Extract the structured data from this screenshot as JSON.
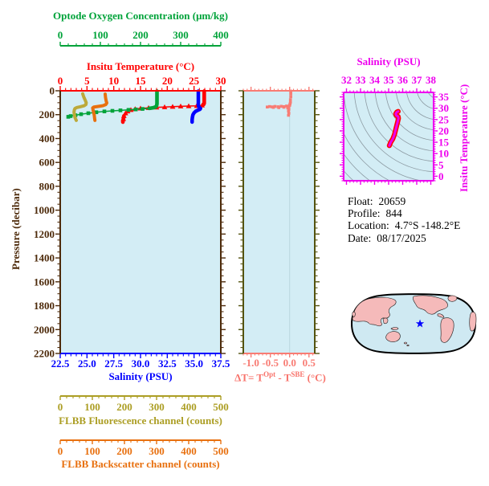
{
  "colors": {
    "panel_bg": "#d3edf5",
    "pressure_axis": "#4d2a0a",
    "temperature": "#ff0000",
    "oxygen": "#00a33a",
    "salinity": "#0000ff",
    "fluorescence": "#ac9e24",
    "backscatter": "#e8700f",
    "delta": "#f87c74",
    "delta_sides": "#54530f",
    "magenta": "#ee00ee",
    "ts_curve_edge": "#ff0000",
    "contour": "#8d9ba3",
    "map_land": "#f5baba",
    "map_ocean": "#cfe9f2",
    "star": "#0000ff",
    "zero_gridline": "#b9d6de"
  },
  "chart_data": [
    {
      "id": "profile",
      "type": "line",
      "y_axis": {
        "label": "Pressure (decibar)",
        "range": [
          0,
          2200
        ],
        "tick_values": [
          0,
          200,
          400,
          600,
          800,
          1000,
          1200,
          1400,
          1600,
          1800,
          2000,
          2200
        ],
        "tick_labels": [
          "0",
          "200",
          "400",
          "600",
          "800",
          "1000",
          "1200",
          "1400",
          "1600",
          "1800",
          "2000",
          "2200"
        ],
        "minor": 50
      },
      "x_axes": {
        "oxygen": {
          "label": "Optode Oxygen Concentration (μm/kg)",
          "range": [
            0,
            400
          ],
          "tick_values": [
            0,
            100,
            200,
            300,
            400
          ],
          "tick_labels": [
            "0",
            "100",
            "200",
            "300",
            "400"
          ],
          "minor": 20
        },
        "temperature": {
          "label": "Insitu Temperature (°C)",
          "range": [
            0,
            30
          ],
          "tick_values": [
            0,
            5,
            10,
            15,
            20,
            25,
            30
          ],
          "tick_labels": [
            "0",
            "5",
            "10",
            "15",
            "20",
            "25",
            "30"
          ],
          "minor": 1
        },
        "salinity": {
          "label": "Salinity (PSU)",
          "range": [
            22.5,
            37.5
          ],
          "tick_values": [
            22.5,
            25.0,
            27.5,
            30.0,
            32.5,
            35.0,
            37.5
          ],
          "tick_labels": [
            "22.5",
            "25.0",
            "27.5",
            "30.0",
            "32.5",
            "35.0",
            "37.5"
          ],
          "minor": 0.5
        },
        "fluorescence": {
          "label": "FLBB Fluorescence channel (counts)",
          "range": [
            0,
            500
          ],
          "tick_values": [
            0,
            100,
            200,
            300,
            400,
            500
          ],
          "tick_labels": [
            "0",
            "100",
            "200",
            "300",
            "400",
            "500"
          ],
          "minor": 20
        },
        "backscatter": {
          "label": "FLBB Backscatter channel (counts)",
          "range": [
            0,
            500
          ],
          "tick_values": [
            0,
            100,
            200,
            300,
            400,
            500
          ],
          "tick_labels": [
            "0",
            "100",
            "200",
            "300",
            "400",
            "500"
          ],
          "minor": 20
        }
      },
      "series": [
        {
          "name": "temperature",
          "axis": "temperature",
          "color": "#ff0000",
          "marker": "triangle",
          "marker_range": [
            122,
            240
          ],
          "thick_above": 120,
          "thick_below": 190,
          "points": [
            [
              26.9,
              3
            ],
            [
              26.9,
              40
            ],
            [
              26.9,
              80
            ],
            [
              26.9,
              105
            ],
            [
              26.8,
              115
            ],
            [
              26.5,
              122
            ],
            [
              25.5,
              126
            ],
            [
              24,
              128
            ],
            [
              22.5,
              130
            ],
            [
              21,
              133
            ],
            [
              19.5,
              136
            ],
            [
              18,
              139
            ],
            [
              16.5,
              143
            ],
            [
              15,
              147
            ],
            [
              14,
              152
            ],
            [
              13.2,
              160
            ],
            [
              12.6,
              172
            ],
            [
              12.2,
              188
            ],
            [
              11.9,
              210
            ],
            [
              11.8,
              235
            ],
            [
              11.7,
              262
            ]
          ]
        },
        {
          "name": "oxygen",
          "axis": "oxygen",
          "color": "#00a33a",
          "marker": "square",
          "marker_range": [
            150,
            230
          ],
          "thick_above": 148,
          "thick_below": 9999,
          "points": [
            [
              241,
              3
            ],
            [
              241,
              40
            ],
            [
              241,
              80
            ],
            [
              241,
              110
            ],
            [
              240,
              125
            ],
            [
              238,
              135
            ],
            [
              232,
              142
            ],
            [
              222,
              147
            ],
            [
              205,
              152
            ],
            [
              188,
              156
            ],
            [
              170,
              160
            ],
            [
              150,
              164
            ],
            [
              130,
              168
            ],
            [
              110,
              173
            ],
            [
              90,
              180
            ],
            [
              70,
              188
            ],
            [
              52,
              196
            ],
            [
              38,
              205
            ],
            [
              26,
              212
            ],
            [
              20,
              218
            ]
          ]
        },
        {
          "name": "salinity",
          "axis": "salinity",
          "color": "#0000ff",
          "marker": "none",
          "width": 4.5,
          "points": [
            [
              35.4,
              3
            ],
            [
              35.4,
              40
            ],
            [
              35.4,
              80
            ],
            [
              35.4,
              115
            ],
            [
              35.42,
              130
            ],
            [
              35.5,
              140
            ],
            [
              35.6,
              148
            ],
            [
              35.55,
              155
            ],
            [
              35.35,
              163
            ],
            [
              35.15,
              172
            ],
            [
              35.0,
              185
            ],
            [
              34.9,
              200
            ],
            [
              34.85,
              220
            ],
            [
              34.82,
              243
            ],
            [
              34.82,
              262
            ]
          ]
        },
        {
          "name": "fluorescence",
          "axis": "fluorescence",
          "color": "#bca93a",
          "marker": "none",
          "width": 4,
          "points": [
            [
              70,
              25
            ],
            [
              73,
              50
            ],
            [
              78,
              80
            ],
            [
              81,
              100
            ],
            [
              80,
              115
            ],
            [
              74,
              126
            ],
            [
              62,
              134
            ],
            [
              52,
              140
            ],
            [
              46,
              148
            ],
            [
              44,
              160
            ],
            [
              43,
              178
            ],
            [
              44,
              200
            ],
            [
              46,
              225
            ],
            [
              50,
              248
            ]
          ]
        },
        {
          "name": "backscatter",
          "axis": "backscatter",
          "color": "#e8700f",
          "marker": "none",
          "width": 4,
          "points": [
            [
              140,
              28
            ],
            [
              141,
              55
            ],
            [
              143,
              85
            ],
            [
              145,
              102
            ],
            [
              142,
              115
            ],
            [
              133,
              125
            ],
            [
              118,
              131
            ],
            [
              105,
              136
            ],
            [
              101,
              143
            ],
            [
              102,
              158
            ],
            [
              104,
              180
            ],
            [
              106,
              205
            ],
            [
              107,
              230
            ],
            [
              108,
              248
            ]
          ]
        }
      ]
    },
    {
      "id": "delta_t",
      "type": "scatter",
      "x_axis": {
        "label_parts": {
          "pre": "ΔT= T",
          "sup1": "Opt",
          "mid": " - T",
          "sup2": "SBE",
          "post": " (°C)"
        },
        "range": [
          -1.2,
          0.65
        ],
        "tick_values": [
          -1.0,
          -0.5,
          0.0,
          0.5
        ],
        "tick_labels": [
          "-1.0",
          "-0.5",
          "0.0",
          "0.5"
        ],
        "minor": 0.1,
        "zero_line": 0.0
      },
      "color": "#f87c74",
      "points": [
        [
          0.03,
          3
        ],
        [
          0.03,
          25
        ],
        [
          0.03,
          50
        ],
        [
          0.02,
          75
        ],
        [
          0.02,
          95
        ],
        [
          0.01,
          110
        ],
        [
          0.0,
          122
        ],
        [
          -0.02,
          132
        ],
        [
          -0.08,
          128
        ],
        [
          -0.15,
          133
        ],
        [
          -0.22,
          130
        ],
        [
          -0.3,
          134
        ],
        [
          -0.38,
          131
        ],
        [
          -0.45,
          135
        ],
        [
          -0.52,
          132
        ],
        [
          -0.58,
          136
        ],
        [
          -0.42,
          139
        ],
        [
          -0.28,
          141
        ],
        [
          -0.15,
          138
        ],
        [
          -0.05,
          144
        ],
        [
          -0.02,
          155
        ],
        [
          -0.03,
          170
        ],
        [
          -0.02,
          188
        ],
        [
          -0.03,
          205
        ]
      ]
    },
    {
      "id": "ts_diagram",
      "type": "line",
      "x_axis": {
        "label": "Salinity (PSU)",
        "range": [
          31.8,
          38.2
        ],
        "tick_values": [
          32,
          33,
          34,
          35,
          36,
          37,
          38
        ],
        "tick_labels": [
          "32",
          "33",
          "34",
          "35",
          "36",
          "37",
          "38"
        ],
        "minor": 0.25
      },
      "y_axis": {
        "label": "Insitu Temperature (°C)",
        "range": [
          -2,
          37
        ],
        "tick_values": [
          0,
          5,
          10,
          15,
          20,
          25,
          30,
          35
        ],
        "tick_labels": [
          "0",
          "5",
          "10",
          "15",
          "20",
          "25",
          "30",
          "35"
        ],
        "minor": 1
      },
      "curve": [
        [
          35.05,
          13.5
        ],
        [
          35.15,
          15.0
        ],
        [
          35.3,
          16.5
        ],
        [
          35.42,
          18.5
        ],
        [
          35.5,
          20.5
        ],
        [
          35.58,
          22.5
        ],
        [
          35.65,
          24.2
        ],
        [
          35.7,
          25.5
        ],
        [
          35.68,
          26.3
        ],
        [
          35.55,
          26.8
        ],
        [
          35.5,
          27.5
        ],
        [
          35.58,
          28.3
        ],
        [
          35.68,
          28.6
        ]
      ],
      "isopycnal_contours": {
        "style": "concentric-arcs",
        "count": 16,
        "start_radius": 14,
        "step": 13
      }
    }
  ],
  "info": {
    "rows": [
      {
        "label": "Float:",
        "value": "20659"
      },
      {
        "label": "Profile:",
        "value": "844"
      },
      {
        "label": "Location:",
        "value": "4.7°S  -148.2°E"
      },
      {
        "label": "Date:",
        "value": "08/17/2025"
      }
    ]
  },
  "map": {
    "star": {
      "fx": 0.549,
      "fy": 0.5
    }
  }
}
